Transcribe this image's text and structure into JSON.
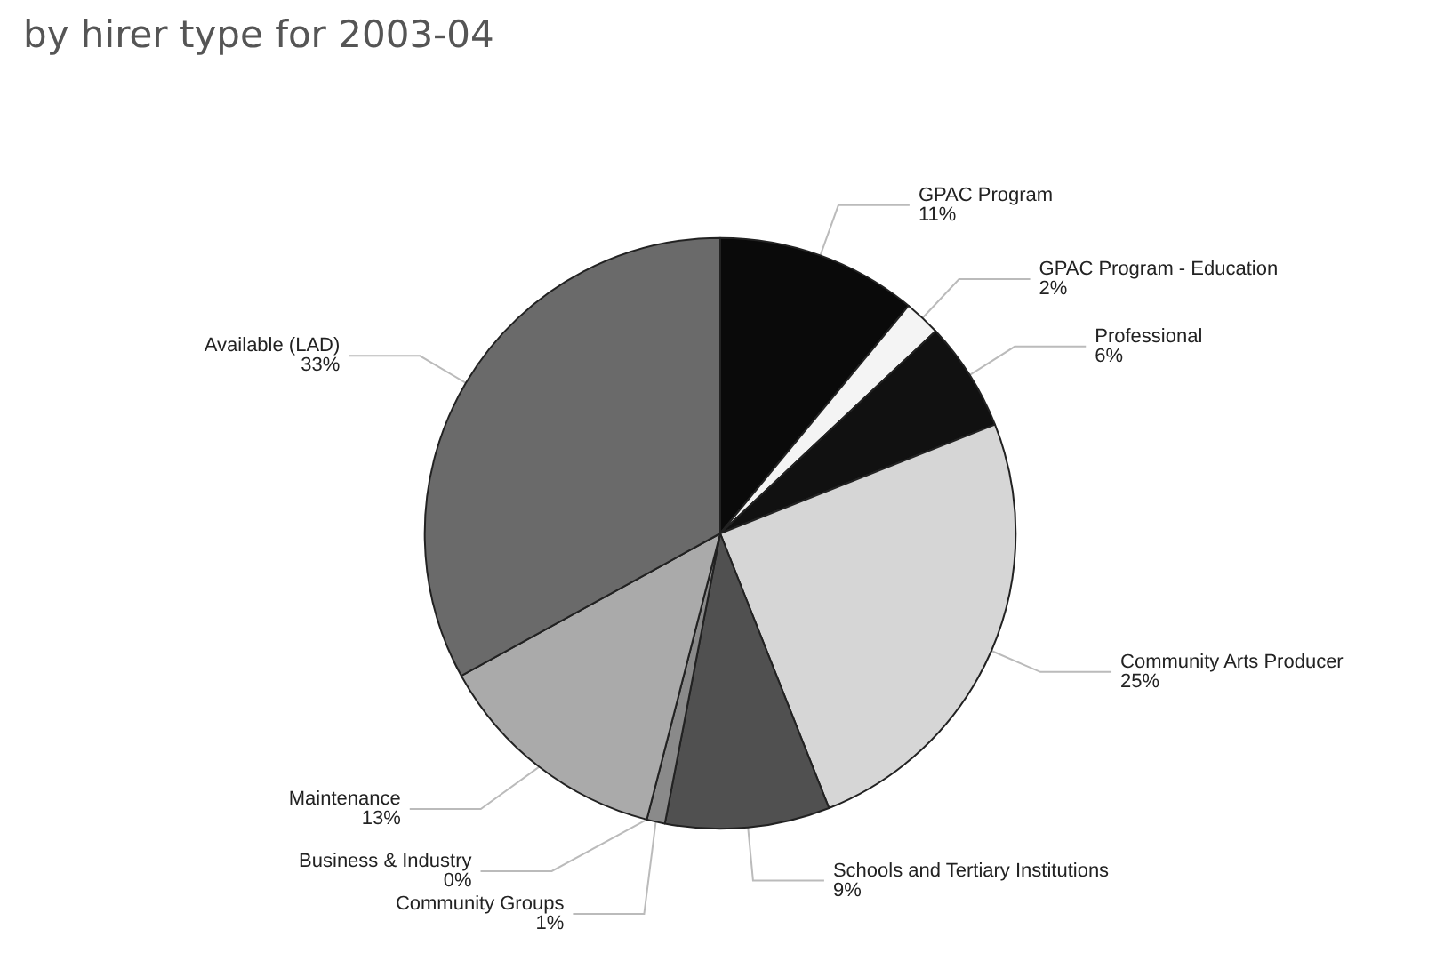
{
  "chart_data": {
    "type": "pie",
    "title": "by hirer type for 2003-04",
    "categories": [
      "GPAC Program",
      "GPAC Program - Education",
      "Professional",
      "Community Arts Producer",
      "Schools and Tertiary Institutions",
      "Community Groups",
      "Business & Industry",
      "Maintenance",
      "Available (LAD)"
    ],
    "values": [
      11,
      2,
      6,
      25,
      9,
      1,
      0,
      13,
      33
    ],
    "value_labels": [
      "11%",
      "2%",
      "6%",
      "25%",
      "9%",
      "1%",
      "0%",
      "13%",
      "33%"
    ],
    "colors": [
      "#0a0a0a",
      "#f4f4f4",
      "#111111",
      "#d6d6d6",
      "#505050",
      "#8a8a8a",
      "#c8c8c8",
      "#aaaaaa",
      "#6a6a6a"
    ],
    "legend": false
  }
}
